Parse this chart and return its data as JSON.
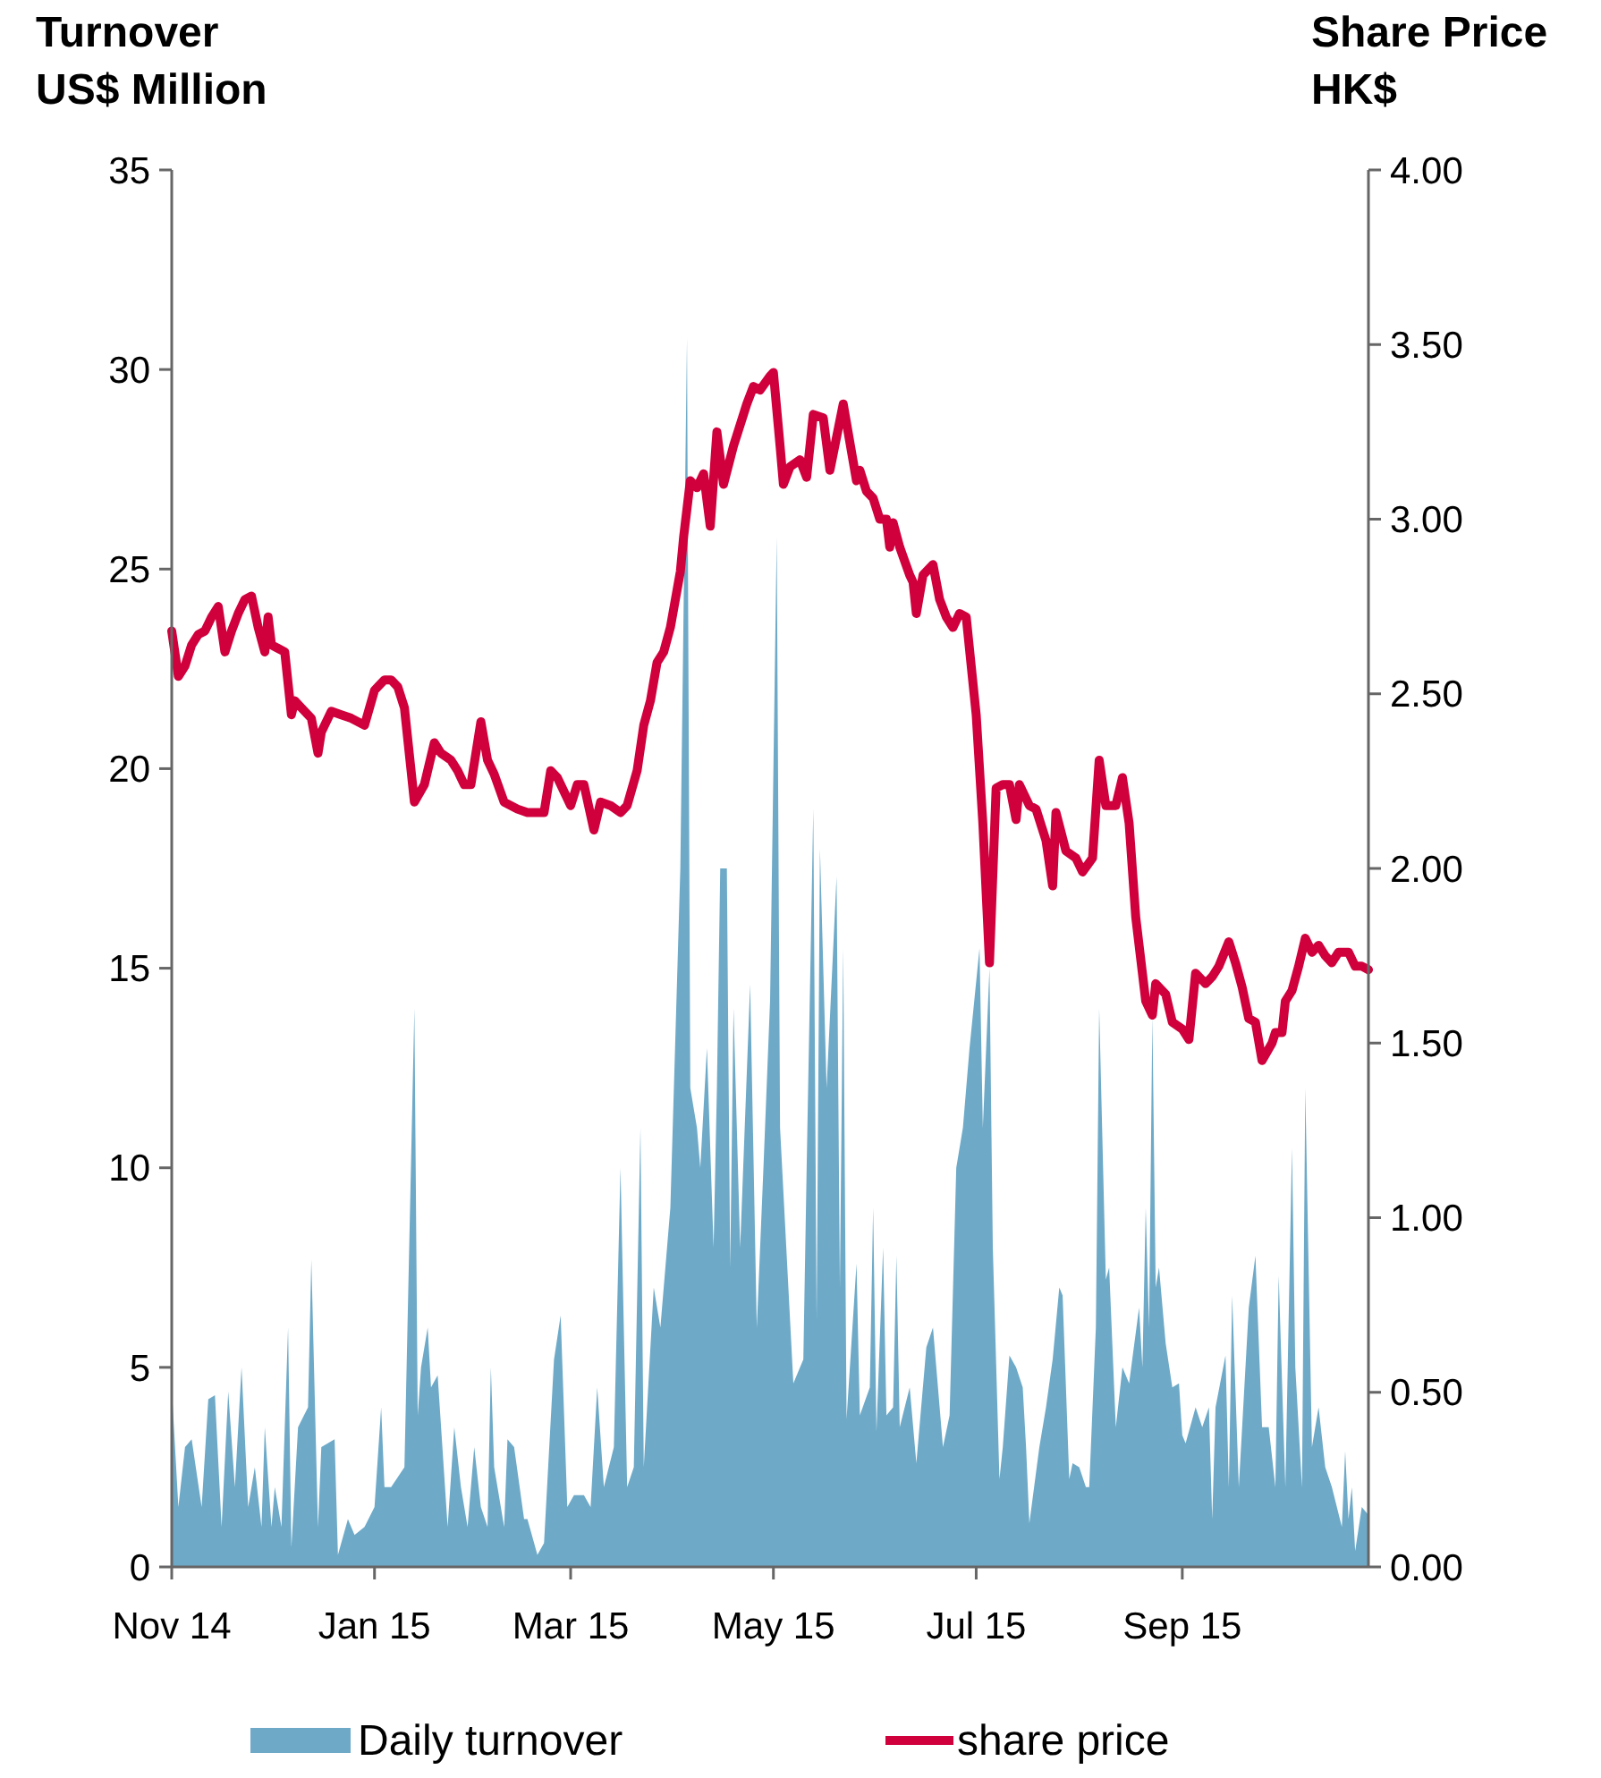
{
  "chart_data": {
    "type": "area",
    "ylabel": "Turnover\nUS$ Million",
    "y2label": "Share Price\nHK$",
    "legend": "bottom",
    "xlim": [
      "2014-11-01",
      "2015-10-27"
    ],
    "xticks": [
      {
        "value": "2014-11-01",
        "label": "Nov 14"
      },
      {
        "value": "2015-01-01",
        "label": "Jan 15"
      },
      {
        "value": "2015-03-01",
        "label": "Mar 15"
      },
      {
        "value": "2015-05-01",
        "label": "May 15"
      },
      {
        "value": "2015-07-01",
        "label": "Jul 15"
      },
      {
        "value": "2015-09-01",
        "label": "Sep 15"
      }
    ],
    "ylim": [
      0,
      35
    ],
    "yticks": [
      0,
      5,
      10,
      15,
      20,
      25,
      30,
      35
    ],
    "y2lim": [
      0,
      4
    ],
    "y2ticks": [
      {
        "value": 0,
        "label": "0.00"
      },
      {
        "value": 0.5,
        "label": "0.50"
      },
      {
        "value": 1,
        "label": "1.00"
      },
      {
        "value": 1.5,
        "label": "1.50"
      },
      {
        "value": 2,
        "label": "2.00"
      },
      {
        "value": 2.5,
        "label": "2.50"
      },
      {
        "value": 3,
        "label": "3.00"
      },
      {
        "value": 3.5,
        "label": "3.50"
      },
      {
        "value": 4,
        "label": "4.00"
      }
    ],
    "series": [
      {
        "name": "Daily turnover",
        "color": "#6eaac8",
        "x": [
          "2014-11-01",
          "2014-11-03",
          "2014-11-05",
          "2014-11-07",
          "2014-11-10",
          "2014-11-12",
          "2014-11-14",
          "2014-11-16",
          "2014-11-18",
          "2014-11-20",
          "2014-11-22",
          "2014-11-24",
          "2014-11-26",
          "2014-11-28",
          "2014-11-29",
          "2014-12-01",
          "2014-12-02",
          "2014-12-04",
          "2014-12-06",
          "2014-12-07",
          "2014-12-09",
          "2014-12-12",
          "2014-12-13",
          "2014-12-15",
          "2014-12-16",
          "2014-12-20",
          "2014-12-21",
          "2014-12-24",
          "2014-12-26",
          "2014-12-29",
          "2015-01-01",
          "2015-01-03",
          "2015-01-04",
          "2015-01-06",
          "2015-01-10",
          "2015-01-13",
          "2015-01-14",
          "2015-01-15",
          "2015-01-17",
          "2015-01-18",
          "2015-01-20",
          "2015-01-23",
          "2015-01-25",
          "2015-01-27",
          "2015-01-29",
          "2015-01-31",
          "2015-02-02",
          "2015-02-04",
          "2015-02-05",
          "2015-02-06",
          "2015-02-09",
          "2015-02-10",
          "2015-02-12",
          "2015-02-15",
          "2015-02-16",
          "2015-02-19",
          "2015-02-21",
          "2015-02-24",
          "2015-02-26",
          "2015-02-28",
          "2015-03-02",
          "2015-03-05",
          "2015-03-07",
          "2015-03-09",
          "2015-03-11",
          "2015-03-14",
          "2015-03-16",
          "2015-03-18",
          "2015-03-20",
          "2015-03-22",
          "2015-03-23",
          "2015-03-26",
          "2015-03-28",
          "2015-03-31",
          "2015-04-03",
          "2015-04-05",
          "2015-04-06",
          "2015-04-08",
          "2015-04-09",
          "2015-04-11",
          "2015-04-13",
          "2015-04-14",
          "2015-04-15",
          "2015-04-17",
          "2015-04-18",
          "2015-04-19",
          "2015-04-21",
          "2015-04-24",
          "2015-04-26",
          "2015-04-28",
          "2015-04-30",
          "2015-05-02",
          "2015-05-03",
          "2015-05-07",
          "2015-05-10",
          "2015-05-11",
          "2015-05-13",
          "2015-05-14",
          "2015-05-15",
          "2015-05-17",
          "2015-05-20",
          "2015-05-21",
          "2015-05-22",
          "2015-05-23",
          "2015-05-26",
          "2015-05-27",
          "2015-05-30",
          "2015-05-31",
          "2015-06-01",
          "2015-06-03",
          "2015-06-04",
          "2015-06-06",
          "2015-06-07",
          "2015-06-08",
          "2015-06-11",
          "2015-06-13",
          "2015-06-16",
          "2015-06-18",
          "2015-06-21",
          "2015-06-23",
          "2015-06-25",
          "2015-06-27",
          "2015-06-29",
          "2015-07-02",
          "2015-07-03",
          "2015-07-05",
          "2015-07-06",
          "2015-07-08",
          "2015-07-09",
          "2015-07-11",
          "2015-07-13",
          "2015-07-15",
          "2015-07-16",
          "2015-07-17",
          "2015-07-20",
          "2015-07-22",
          "2015-07-24",
          "2015-07-26",
          "2015-07-27",
          "2015-07-29",
          "2015-07-30",
          "2015-08-01",
          "2015-08-03",
          "2015-08-04",
          "2015-08-06",
          "2015-08-07",
          "2015-08-09",
          "2015-08-10",
          "2015-08-12",
          "2015-08-14",
          "2015-08-16",
          "2015-08-19",
          "2015-08-20",
          "2015-08-21",
          "2015-08-22",
          "2015-08-23",
          "2015-08-24",
          "2015-08-25",
          "2015-08-27",
          "2015-08-29",
          "2015-08-31",
          "2015-09-01",
          "2015-09-02",
          "2015-09-05",
          "2015-09-07",
          "2015-09-09",
          "2015-09-10",
          "2015-09-11",
          "2015-09-14",
          "2015-09-15",
          "2015-09-16",
          "2015-09-18",
          "2015-09-21",
          "2015-09-23",
          "2015-09-25",
          "2015-09-27",
          "2015-09-29",
          "2015-09-30",
          "2015-10-02",
          "2015-10-04",
          "2015-10-05",
          "2015-10-07",
          "2015-10-08",
          "2015-10-10",
          "2015-10-12",
          "2015-10-14",
          "2015-10-16",
          "2015-10-19",
          "2015-10-20",
          "2015-10-21",
          "2015-10-22",
          "2015-10-23",
          "2015-10-25",
          "2015-10-27"
        ],
        "values": [
          4.5,
          1.5,
          3.0,
          3.2,
          1.5,
          4.2,
          4.3,
          1.0,
          4.4,
          2.0,
          5.0,
          1.5,
          2.5,
          1.0,
          3.5,
          1.0,
          2.0,
          1.0,
          6.0,
          0.5,
          3.5,
          4.0,
          7.7,
          1.0,
          3.0,
          3.2,
          0.3,
          1.2,
          0.8,
          1.0,
          1.5,
          4.0,
          2.0,
          2.0,
          2.5,
          14.0,
          3.8,
          5.0,
          6.0,
          4.5,
          4.8,
          1.0,
          3.5,
          2.0,
          1.0,
          3.0,
          1.5,
          1.0,
          5.0,
          2.5,
          1.0,
          3.2,
          3.0,
          1.2,
          1.2,
          0.3,
          0.6,
          5.2,
          6.3,
          1.5,
          1.8,
          1.8,
          1.5,
          4.5,
          2.0,
          3.0,
          10.0,
          2.0,
          2.5,
          11.0,
          2.5,
          7.0,
          6.0,
          9.0,
          17.5,
          30.8,
          12.0,
          11.0,
          10.0,
          13.0,
          8.0,
          12.0,
          17.5,
          17.5,
          7.5,
          14.0,
          8.0,
          14.6,
          6.0,
          10.0,
          14.2,
          25.8,
          11.0,
          4.6,
          5.2,
          10.0,
          19.0,
          6.2,
          18.0,
          12.0,
          17.3,
          7.0,
          15.5,
          3.7,
          7.6,
          3.8,
          4.5,
          9.0,
          3.4,
          8.0,
          3.8,
          4.0,
          7.8,
          3.5,
          4.5,
          2.6,
          5.5,
          6.0,
          3.0,
          3.8,
          10.0,
          11.0,
          13.0,
          15.5,
          11.0,
          15.0,
          8.0,
          2.2,
          3.0,
          5.3,
          5.0,
          4.5,
          3.0,
          1.1,
          3.0,
          4.0,
          5.2,
          7.0,
          6.8,
          2.2,
          2.6,
          2.5,
          2.0,
          2.0,
          6.0,
          14.0,
          7.2,
          7.5,
          3.5,
          5.0,
          4.6,
          6.5,
          5.0,
          9.0,
          6.0,
          13.8,
          7.0,
          7.5,
          5.6,
          4.5,
          4.6,
          3.3,
          3.1,
          4.0,
          3.5,
          4.0,
          1.2,
          4.0,
          5.3,
          2.0,
          6.8,
          2.0,
          6.5,
          7.8,
          3.5,
          3.5,
          2.0,
          7.3,
          2.0,
          10.5,
          5.0,
          2.0,
          12.0,
          3.0,
          4.0,
          2.5,
          2.0,
          1.0,
          2.9,
          1.2,
          2.0,
          0.4,
          1.5,
          1.3
        ]
      },
      {
        "name": "share price",
        "type": "line",
        "axis": "y2",
        "color": "#d0003c",
        "x": [
          "2014-11-01",
          "2014-11-03",
          "2014-11-05",
          "2014-11-07",
          "2014-11-09",
          "2014-11-11",
          "2014-11-13",
          "2014-11-15",
          "2014-11-17",
          "2014-11-19",
          "2014-11-21",
          "2014-11-23",
          "2014-11-25",
          "2014-11-27",
          "2014-11-29",
          "2014-11-30",
          "2014-12-01",
          "2014-12-03",
          "2014-12-05",
          "2014-12-07",
          "2014-12-08",
          "2014-12-10",
          "2014-12-13",
          "2014-12-15",
          "2014-12-16",
          "2014-12-19",
          "2014-12-22",
          "2014-12-25",
          "2014-12-29",
          "2015-01-01",
          "2015-01-04",
          "2015-01-06",
          "2015-01-08",
          "2015-01-10",
          "2015-01-13",
          "2015-01-16",
          "2015-01-19",
          "2015-01-21",
          "2015-01-24",
          "2015-01-26",
          "2015-01-28",
          "2015-01-30",
          "2015-02-02",
          "2015-02-04",
          "2015-02-06",
          "2015-02-09",
          "2015-02-13",
          "2015-02-16",
          "2015-02-21",
          "2015-02-23",
          "2015-02-25",
          "2015-03-01",
          "2015-03-03",
          "2015-03-05",
          "2015-03-08",
          "2015-03-10",
          "2015-03-13",
          "2015-03-16",
          "2015-03-18",
          "2015-03-21",
          "2015-03-23",
          "2015-03-25",
          "2015-03-27",
          "2015-03-29",
          "2015-03-31",
          "2015-04-03",
          "2015-04-04",
          "2015-04-06",
          "2015-04-08",
          "2015-04-10",
          "2015-04-12",
          "2015-04-14",
          "2015-04-16",
          "2015-04-19",
          "2015-04-23",
          "2015-04-25",
          "2015-04-27",
          "2015-04-30",
          "2015-05-01",
          "2015-05-03",
          "2015-05-04",
          "2015-05-06",
          "2015-05-09",
          "2015-05-11",
          "2015-05-13",
          "2015-05-16",
          "2015-05-18",
          "2015-05-22",
          "2015-05-26",
          "2015-05-27",
          "2015-05-29",
          "2015-05-31",
          "2015-06-02",
          "2015-06-04",
          "2015-06-05",
          "2015-06-06",
          "2015-06-08",
          "2015-06-11",
          "2015-06-12",
          "2015-06-13",
          "2015-06-15",
          "2015-06-18",
          "2015-06-20",
          "2015-06-22",
          "2015-06-24",
          "2015-06-26",
          "2015-06-28",
          "2015-07-01",
          "2015-07-03",
          "2015-07-05",
          "2015-07-07",
          "2015-07-09",
          "2015-07-11",
          "2015-07-13",
          "2015-07-14",
          "2015-07-17",
          "2015-07-19",
          "2015-07-22",
          "2015-07-24",
          "2015-07-25",
          "2015-07-28",
          "2015-07-31",
          "2015-08-02",
          "2015-08-05",
          "2015-08-07",
          "2015-08-09",
          "2015-08-12",
          "2015-08-14",
          "2015-08-16",
          "2015-08-18",
          "2015-08-21",
          "2015-08-23",
          "2015-08-24",
          "2015-08-27",
          "2015-08-29",
          "2015-09-01",
          "2015-09-03",
          "2015-09-05",
          "2015-09-08",
          "2015-09-10",
          "2015-09-12",
          "2015-09-15",
          "2015-09-17",
          "2015-09-19",
          "2015-09-21",
          "2015-09-23",
          "2015-09-25",
          "2015-09-28",
          "2015-09-29",
          "2015-10-01",
          "2015-10-02",
          "2015-10-04",
          "2015-10-06",
          "2015-10-08",
          "2015-10-10",
          "2015-10-12",
          "2015-10-14",
          "2015-10-16",
          "2015-10-18",
          "2015-10-21",
          "2015-10-23",
          "2015-10-25",
          "2015-10-27"
        ],
        "values": [
          2.68,
          2.55,
          2.58,
          2.64,
          2.67,
          2.68,
          2.72,
          2.75,
          2.62,
          2.68,
          2.73,
          2.77,
          2.78,
          2.69,
          2.62,
          2.72,
          2.64,
          2.63,
          2.62,
          2.44,
          2.48,
          2.46,
          2.43,
          2.33,
          2.39,
          2.45,
          2.44,
          2.43,
          2.41,
          2.51,
          2.54,
          2.54,
          2.52,
          2.46,
          2.19,
          2.24,
          2.36,
          2.33,
          2.31,
          2.28,
          2.24,
          2.24,
          2.42,
          2.31,
          2.27,
          2.19,
          2.17,
          2.16,
          2.16,
          2.28,
          2.26,
          2.18,
          2.24,
          2.24,
          2.11,
          2.19,
          2.18,
          2.16,
          2.18,
          2.28,
          2.41,
          2.48,
          2.59,
          2.62,
          2.69,
          2.85,
          2.95,
          3.11,
          3.09,
          3.13,
          2.98,
          3.25,
          3.1,
          3.21,
          3.33,
          3.38,
          3.37,
          3.41,
          3.42,
          3.21,
          3.1,
          3.15,
          3.17,
          3.12,
          3.3,
          3.29,
          3.14,
          3.33,
          3.11,
          3.14,
          3.08,
          3.06,
          3.0,
          3.0,
          2.92,
          2.99,
          2.92,
          2.84,
          2.82,
          2.73,
          2.84,
          2.87,
          2.77,
          2.72,
          2.69,
          2.73,
          2.72,
          2.44,
          2.13,
          1.73,
          2.23,
          2.24,
          2.24,
          2.14,
          2.24,
          2.18,
          2.17,
          2.08,
          1.95,
          2.16,
          2.05,
          2.03,
          1.99,
          2.03,
          2.31,
          2.18,
          2.18,
          2.26,
          2.13,
          1.86,
          1.62,
          1.58,
          1.67,
          1.64,
          1.56,
          1.54,
          1.51,
          1.7,
          1.67,
          1.69,
          1.72,
          1.79,
          1.73,
          1.66,
          1.57,
          1.56,
          1.45,
          1.5,
          1.53,
          1.53,
          1.62,
          1.65,
          1.72,
          1.8,
          1.76,
          1.78,
          1.75,
          1.73,
          1.76,
          1.76,
          1.72,
          1.72,
          1.71
        ]
      }
    ]
  }
}
